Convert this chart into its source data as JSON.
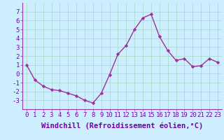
{
  "x": [
    0,
    1,
    2,
    3,
    4,
    5,
    6,
    7,
    8,
    9,
    10,
    11,
    12,
    13,
    14,
    15,
    16,
    17,
    18,
    19,
    20,
    21,
    22,
    23
  ],
  "y": [
    1.0,
    -0.7,
    -1.4,
    -1.8,
    -1.9,
    -2.2,
    -2.5,
    -3.0,
    -3.3,
    -2.2,
    -0.1,
    2.2,
    3.2,
    5.0,
    6.3,
    6.7,
    4.2,
    2.6,
    1.5,
    1.7,
    0.8,
    0.9,
    1.7,
    1.3
  ],
  "line_color": "#993399",
  "marker": "D",
  "marker_size": 2.2,
  "bg_color": "#cceeff",
  "grid_color": "#aaddcc",
  "xlabel": "Windchill (Refroidissement éolien,°C)",
  "xlabel_fontsize": 7.5,
  "ylim": [
    -4,
    8
  ],
  "yticks": [
    -3,
    -2,
    -1,
    0,
    1,
    2,
    3,
    4,
    5,
    6,
    7
  ],
  "xticks": [
    0,
    1,
    2,
    3,
    4,
    5,
    6,
    7,
    8,
    9,
    10,
    11,
    12,
    13,
    14,
    15,
    16,
    17,
    18,
    19,
    20,
    21,
    22,
    23
  ],
  "tick_fontsize": 6.5,
  "line_width": 1.0,
  "spine_color": "#9933aa",
  "label_color": "#7700aa"
}
